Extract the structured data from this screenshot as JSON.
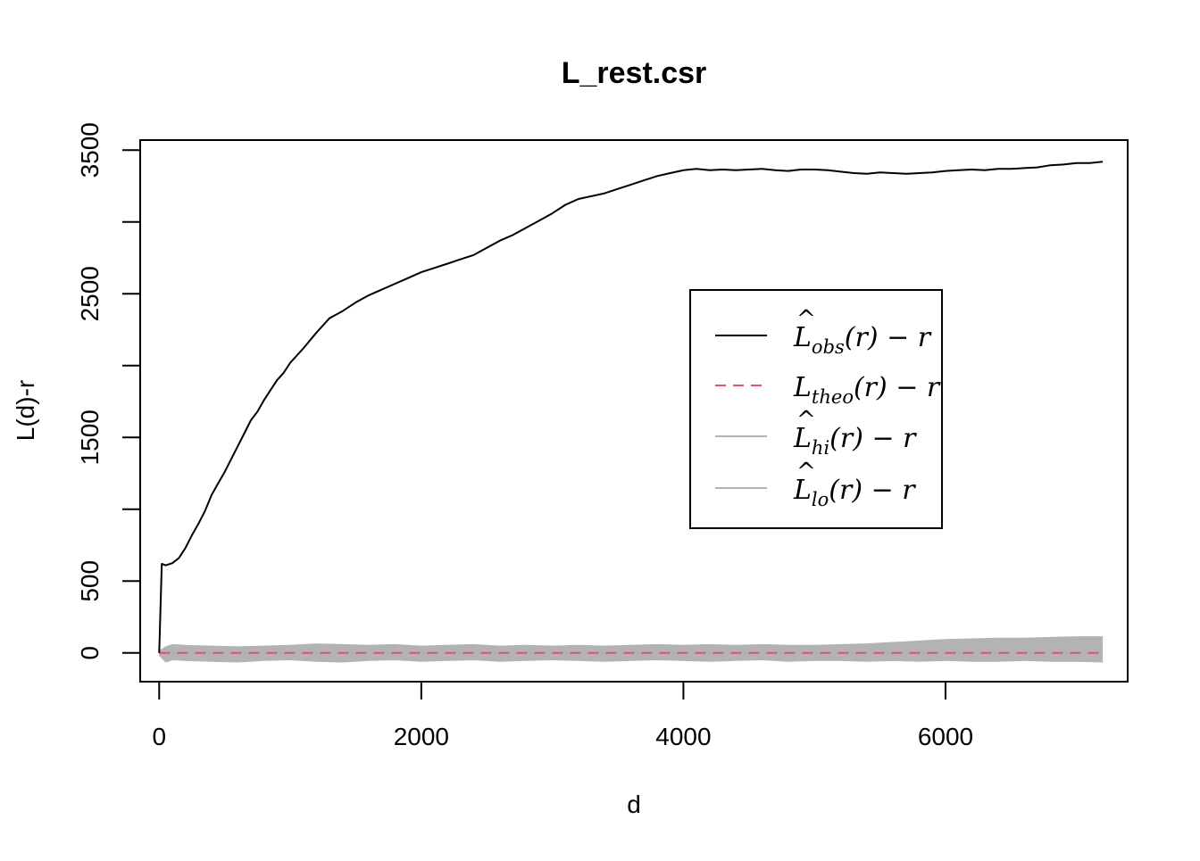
{
  "chart_data": {
    "type": "line",
    "title": "L_rest.csr",
    "xlabel": "d",
    "ylabel": "L(d)-r",
    "xlim": [
      -145,
      7390
    ],
    "ylim": [
      -200,
      3570
    ],
    "xticks": [
      0,
      2000,
      4000,
      6000
    ],
    "xtick_labels": [
      "0",
      "2000",
      "4000",
      "6000"
    ],
    "yticks": [
      0,
      500,
      1000,
      1500,
      2000,
      2500,
      3000,
      3500
    ],
    "ytick_labels": [
      "0",
      "500",
      "",
      "1500",
      "",
      "2500",
      "",
      "3500"
    ],
    "grid": false,
    "legend_position": "center-right",
    "series": [
      {
        "key": "obs",
        "legend": {
          "main": "L",
          "hat": true,
          "sub": "obs",
          "tail": "(r) − r"
        },
        "color": "#000000",
        "dash": "solid",
        "x": [
          0,
          20,
          50,
          100,
          150,
          200,
          250,
          300,
          350,
          400,
          450,
          500,
          550,
          600,
          650,
          700,
          750,
          800,
          850,
          900,
          950,
          1000,
          1100,
          1200,
          1300,
          1400,
          1500,
          1600,
          1700,
          1800,
          1900,
          2000,
          2100,
          2200,
          2300,
          2400,
          2500,
          2600,
          2700,
          2800,
          2900,
          3000,
          3100,
          3200,
          3300,
          3400,
          3500,
          3600,
          3700,
          3800,
          3900,
          4000,
          4100,
          4200,
          4300,
          4400,
          4500,
          4600,
          4700,
          4800,
          4900,
          5000,
          5100,
          5200,
          5300,
          5400,
          5500,
          5600,
          5700,
          5800,
          5900,
          6000,
          6100,
          6200,
          6300,
          6400,
          6500,
          6600,
          6700,
          6800,
          6900,
          7000,
          7100,
          7200
        ],
        "values": [
          0,
          620,
          610,
          625,
          660,
          730,
          820,
          900,
          990,
          1100,
          1180,
          1260,
          1350,
          1440,
          1530,
          1620,
          1680,
          1760,
          1830,
          1900,
          1950,
          2020,
          2120,
          2230,
          2330,
          2380,
          2440,
          2490,
          2530,
          2570,
          2610,
          2650,
          2680,
          2710,
          2740,
          2770,
          2820,
          2870,
          2910,
          2960,
          3010,
          3060,
          3120,
          3160,
          3180,
          3200,
          3230,
          3260,
          3290,
          3320,
          3340,
          3360,
          3370,
          3360,
          3365,
          3360,
          3365,
          3370,
          3360,
          3355,
          3365,
          3365,
          3360,
          3350,
          3340,
          3335,
          3345,
          3340,
          3335,
          3340,
          3345,
          3355,
          3360,
          3365,
          3360,
          3370,
          3370,
          3375,
          3380,
          3395,
          3400,
          3410,
          3410,
          3420
        ]
      },
      {
        "key": "theo",
        "legend": {
          "main": "L",
          "hat": false,
          "sub": "theo",
          "tail": "(r) − r"
        },
        "color": "#DF536B",
        "dash": "dashed",
        "x": [
          0,
          7200
        ],
        "values": [
          0,
          0
        ]
      },
      {
        "key": "hi",
        "legend": {
          "main": "L",
          "hat": true,
          "sub": "hi",
          "tail": "(r) − r"
        },
        "color": "#B3B3B3",
        "dash": "solid",
        "x": [
          0,
          50,
          100,
          200,
          400,
          600,
          800,
          1000,
          1200,
          1400,
          1600,
          1800,
          2000,
          2200,
          2400,
          2600,
          2800,
          3000,
          3200,
          3400,
          3600,
          3800,
          4000,
          4200,
          4400,
          4600,
          4800,
          5000,
          5200,
          5400,
          5600,
          5800,
          6000,
          6200,
          6400,
          6600,
          6800,
          7000,
          7200
        ],
        "values": [
          10,
          40,
          55,
          50,
          45,
          40,
          45,
          50,
          60,
          55,
          50,
          55,
          45,
          50,
          55,
          45,
          50,
          45,
          50,
          45,
          50,
          55,
          50,
          55,
          50,
          55,
          50,
          50,
          55,
          60,
          70,
          80,
          90,
          95,
          100,
          100,
          105,
          110,
          110
        ]
      },
      {
        "key": "lo",
        "legend": {
          "main": "L",
          "hat": true,
          "sub": "lo",
          "tail": "(r) − r"
        },
        "color": "#B3B3B3",
        "dash": "solid",
        "x": [
          0,
          50,
          100,
          200,
          400,
          600,
          800,
          1000,
          1200,
          1400,
          1600,
          1800,
          2000,
          2200,
          2400,
          2600,
          2800,
          3000,
          3200,
          3400,
          3600,
          3800,
          4000,
          4200,
          4400,
          4600,
          4800,
          5000,
          5200,
          5400,
          5600,
          5800,
          6000,
          6200,
          6400,
          6600,
          6800,
          7000,
          7200
        ],
        "values": [
          -10,
          -60,
          -45,
          -50,
          -55,
          -60,
          -50,
          -45,
          -55,
          -60,
          -50,
          -45,
          -55,
          -50,
          -45,
          -55,
          -50,
          -45,
          -50,
          -55,
          -50,
          -45,
          -50,
          -55,
          -50,
          -45,
          -55,
          -50,
          -50,
          -55,
          -50,
          -55,
          -50,
          -55,
          -55,
          -50,
          -55,
          -55,
          -60
        ]
      }
    ]
  }
}
